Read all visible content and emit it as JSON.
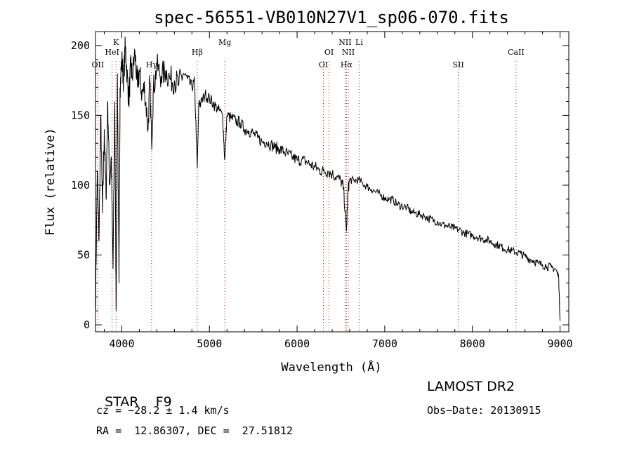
{
  "chart_data": {
    "type": "line",
    "title": "spec-56551-VB010N27V1_sp06-070.fits",
    "xlabel": "Wavelength (Å)",
    "ylabel": "Flux (relative)",
    "xlim": [
      3700,
      9100
    ],
    "ylim": [
      -5,
      210
    ],
    "xticks": [
      4000,
      5000,
      6000,
      7000,
      8000,
      9000
    ],
    "yticks": [
      0,
      50,
      100,
      150,
      200
    ],
    "grid": false,
    "line_color": "#000000",
    "marker_color": "#cc0000",
    "spectrum": {
      "x": [
        3700,
        3720,
        3740,
        3760,
        3780,
        3800,
        3820,
        3840,
        3860,
        3880,
        3900,
        3920,
        3935,
        3950,
        3968,
        3980,
        4000,
        4020,
        4040,
        4060,
        4080,
        4101,
        4120,
        4150,
        4180,
        4200,
        4230,
        4260,
        4300,
        4320,
        4340,
        4360,
        4400,
        4450,
        4500,
        4550,
        4600,
        4650,
        4700,
        4750,
        4800,
        4830,
        4861,
        4880,
        4900,
        4950,
        5000,
        5050,
        5100,
        5150,
        5175,
        5200,
        5250,
        5300,
        5350,
        5400,
        5450,
        5500,
        5550,
        5600,
        5650,
        5700,
        5750,
        5800,
        5850,
        5900,
        5950,
        6000,
        6050,
        6100,
        6150,
        6200,
        6250,
        6300,
        6350,
        6400,
        6450,
        6500,
        6530,
        6563,
        6580,
        6600,
        6650,
        6700,
        6750,
        6800,
        6850,
        6900,
        6950,
        7000,
        7050,
        7100,
        7150,
        7200,
        7250,
        7300,
        7350,
        7400,
        7450,
        7500,
        7550,
        7600,
        7650,
        7700,
        7750,
        7800,
        7850,
        7900,
        7950,
        8000,
        8050,
        8100,
        8150,
        8200,
        8250,
        8300,
        8350,
        8400,
        8450,
        8500,
        8550,
        8600,
        8650,
        8700,
        8750,
        8800,
        8850,
        8900,
        8950,
        8985,
        9000
      ],
      "y": [
        10,
        110,
        60,
        150,
        80,
        140,
        90,
        160,
        100,
        120,
        40,
        160,
        10,
        180,
        30,
        170,
        190,
        175,
        200,
        180,
        160,
        185,
        178,
        195,
        170,
        182,
        165,
        170,
        140,
        175,
        130,
        168,
        185,
        178,
        182,
        176,
        175,
        172,
        180,
        176,
        170,
        174,
        112,
        160,
        158,
        165,
        162,
        158,
        154,
        150,
        118,
        150,
        148,
        146,
        145,
        140,
        139,
        137,
        134,
        131,
        131,
        129,
        127,
        126,
        124,
        122,
        120,
        118,
        118,
        117,
        115,
        113,
        111,
        110,
        110,
        108,
        106,
        103,
        98,
        67,
        96,
        104,
        103,
        104,
        101,
        99,
        97,
        95,
        93,
        91,
        90,
        89,
        86,
        85,
        84,
        81,
        80,
        79,
        78,
        76,
        75,
        74,
        72,
        71,
        70,
        69,
        68,
        66,
        65,
        64,
        63,
        62,
        61,
        60,
        58,
        57,
        55,
        54,
        53,
        52,
        51,
        49,
        47,
        46,
        44,
        43,
        42,
        41,
        40,
        34,
        3
      ]
    },
    "lines": [
      {
        "label": "OII",
        "wavelength": 3727
      },
      {
        "label": "K",
        "wavelength": 3934
      },
      {
        "label": "HeI",
        "wavelength": 3889
      },
      {
        "label": "Hγ",
        "wavelength": 4340
      },
      {
        "label": "Hβ",
        "wavelength": 4861
      },
      {
        "label": "Mg",
        "wavelength": 5175
      },
      {
        "label": "OI",
        "wavelength": 6300
      },
      {
        "label": "OI",
        "wavelength": 6364
      },
      {
        "label": "NII",
        "wavelength": 6548
      },
      {
        "label": "Hα",
        "wavelength": 6563
      },
      {
        "label": "NII",
        "wavelength": 6584
      },
      {
        "label": "Li",
        "wavelength": 6708
      },
      {
        "label": "SII",
        "wavelength": 7840
      },
      {
        "label": "CaII",
        "wavelength": 8498
      }
    ]
  },
  "info": {
    "class_label": "STAR",
    "subclass": "F9",
    "survey": "LAMOST DR2",
    "cz": "cz = −28.2 ± 1.4 km/s",
    "obs_date": "Obs−Date: 20130915",
    "coords": "RA =  12.86307, DEC =  27.51812"
  }
}
